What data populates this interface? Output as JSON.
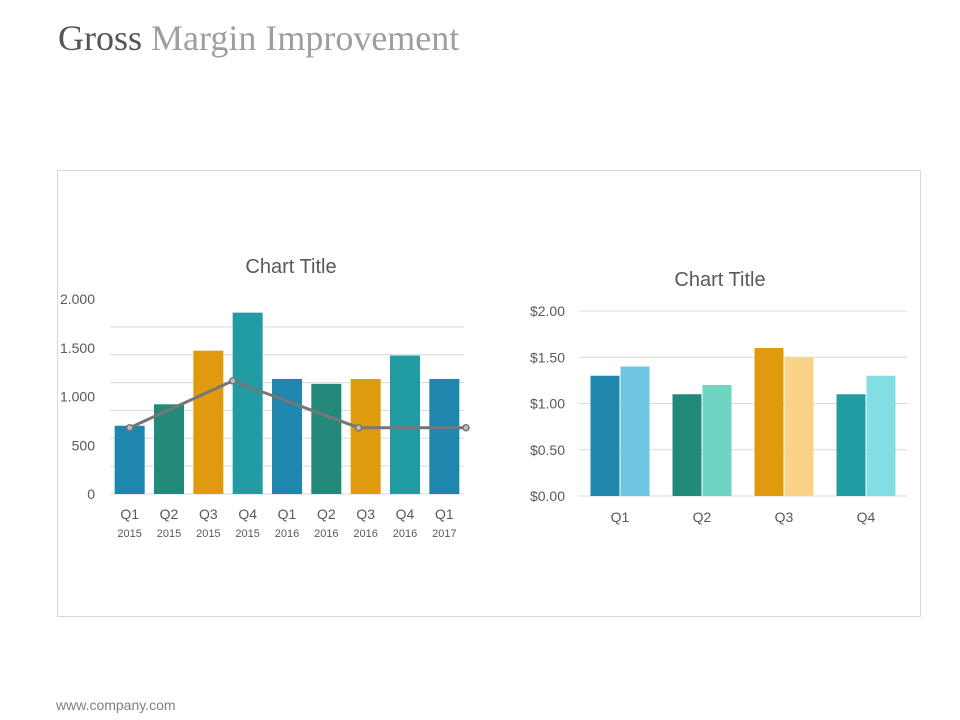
{
  "header": {
    "title_part1": "Gross",
    "title_part2": "Margin Improvement"
  },
  "footer": {
    "url": "www.company.com"
  },
  "colors": {
    "blue": "#1f87ad",
    "green": "#23897a",
    "gold": "#e09a0e",
    "teal": "#219ca3",
    "light_blue": "#6ec6e4",
    "mint": "#6fd5c3",
    "light_gold": "#fad388",
    "light_teal": "#82dde5",
    "line": "#767676",
    "grid": "#d9d9d9",
    "text": "#595959"
  },
  "chart_data": [
    {
      "type": "bar",
      "title": "Chart Title",
      "categories": [
        "Q1",
        "Q2",
        "Q3",
        "Q4",
        "Q1",
        "Q2",
        "Q3",
        "Q4",
        "Q1"
      ],
      "sub_categories": [
        "2015",
        "2015",
        "2015",
        "2015",
        "2016",
        "2016",
        "2016",
        "2016",
        "2017"
      ],
      "ylim": [
        0,
        2000
      ],
      "yticks": [
        0,
        500,
        1000,
        1500,
        2000
      ],
      "ytick_labels": [
        "0",
        "500",
        "1.000",
        "1.500",
        "2.000"
      ],
      "series": [
        {
          "name": "Bars",
          "kind": "bar",
          "values": [
            700,
            920,
            1470,
            1860,
            1180,
            1130,
            1180,
            1420,
            1180
          ]
        },
        {
          "name": "Line",
          "kind": "line",
          "points": [
            [
              0,
              680
            ],
            [
              2.62,
              1160
            ],
            [
              5.82,
              680
            ],
            [
              8.55,
              680
            ]
          ]
        }
      ],
      "bar_colors": [
        "blue",
        "green",
        "gold",
        "teal",
        "blue",
        "green",
        "gold",
        "teal",
        "blue"
      ],
      "grid": true,
      "legend": "none"
    },
    {
      "type": "bar",
      "title": "Chart Title",
      "categories": [
        "Q1",
        "Q2",
        "Q3",
        "Q4"
      ],
      "ylim": [
        0,
        2
      ],
      "yticks": [
        0,
        0.5,
        1,
        1.5,
        2
      ],
      "ytick_labels": [
        "$0.00",
        "$0.50",
        "$1.00",
        "$1.50",
        "$2.00"
      ],
      "series": [
        {
          "name": "Series 1",
          "values": [
            1.3,
            1.1,
            1.6,
            1.1
          ],
          "colors": [
            "blue",
            "green",
            "gold",
            "teal"
          ]
        },
        {
          "name": "Series 2",
          "values": [
            1.4,
            1.2,
            1.5,
            1.3
          ],
          "colors": [
            "light_blue",
            "mint",
            "light_gold",
            "light_teal"
          ]
        }
      ],
      "grid": true,
      "legend": "none"
    }
  ]
}
